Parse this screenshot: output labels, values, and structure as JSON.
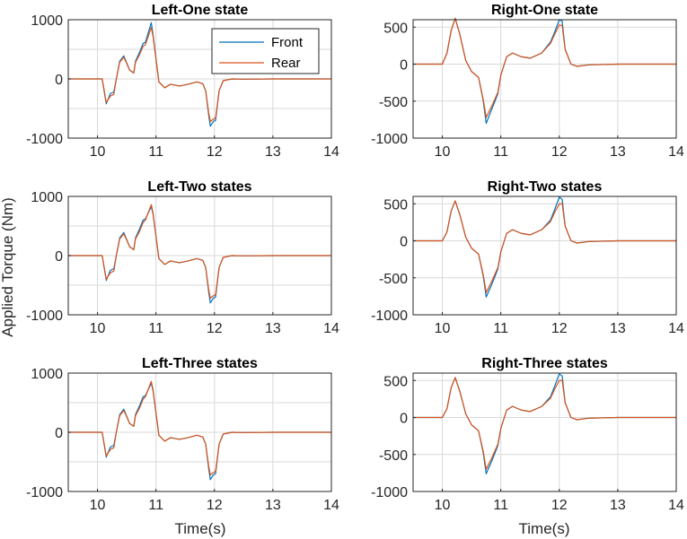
{
  "figure": {
    "ylabel": "Applied Torque (Nm)",
    "xlabel": "Time(s)",
    "colors": {
      "front": "#0072BD",
      "rear": "#D95319"
    }
  },
  "legend": {
    "items": [
      "Front",
      "Rear"
    ],
    "location": "top-right of Left-One state panel"
  },
  "chart_data": [
    {
      "type": "line",
      "title": "Left-One state",
      "xlim": [
        9.5,
        14
      ],
      "ylim": [
        -1000,
        1000
      ],
      "xticks": [
        10,
        11,
        12,
        13,
        14
      ],
      "yticks": [
        -1000,
        0,
        1000
      ],
      "grid": true,
      "legend": true,
      "series": [
        {
          "name": "Front",
          "x": [
            9.5,
            10.0,
            10.08,
            10.15,
            10.22,
            10.28,
            10.32,
            10.38,
            10.45,
            10.55,
            10.62,
            10.65,
            10.72,
            10.78,
            10.82,
            10.92,
            10.95,
            11.05,
            11.15,
            11.25,
            11.4,
            11.55,
            11.7,
            11.8,
            11.85,
            11.9,
            11.93,
            11.98,
            12.02,
            12.08,
            12.15,
            12.3,
            12.5,
            13.0,
            14.0
          ],
          "y": [
            0,
            0,
            0,
            -420,
            -250,
            -220,
            -10,
            300,
            390,
            150,
            100,
            300,
            450,
            600,
            620,
            950,
            750,
            -50,
            -150,
            -90,
            -120,
            -90,
            -50,
            -80,
            -200,
            -600,
            -800,
            -720,
            -700,
            -200,
            -30,
            0,
            -5,
            0,
            0
          ]
        },
        {
          "name": "Rear",
          "x": [
            9.5,
            10.0,
            10.08,
            10.15,
            10.22,
            10.28,
            10.32,
            10.38,
            10.45,
            10.55,
            10.62,
            10.65,
            10.72,
            10.78,
            10.82,
            10.92,
            10.95,
            11.05,
            11.15,
            11.25,
            11.4,
            11.55,
            11.7,
            11.8,
            11.85,
            11.9,
            11.93,
            11.98,
            12.02,
            12.08,
            12.15,
            12.3,
            12.5,
            13.0,
            14.0
          ],
          "y": [
            0,
            0,
            0,
            -400,
            -290,
            -260,
            -10,
            280,
            370,
            150,
            100,
            280,
            410,
            550,
            580,
            870,
            720,
            -50,
            -150,
            -90,
            -120,
            -90,
            -50,
            -80,
            -200,
            -560,
            -720,
            -680,
            -660,
            -200,
            -30,
            0,
            -5,
            0,
            0
          ]
        }
      ]
    },
    {
      "type": "line",
      "title": "Right-One state",
      "xlim": [
        9.5,
        14
      ],
      "ylim": [
        -1000,
        600
      ],
      "xticks": [
        10,
        11,
        12,
        13,
        14
      ],
      "yticks": [
        -1000,
        -500,
        0,
        500
      ],
      "grid": true,
      "legend": false,
      "series": [
        {
          "name": "Front",
          "x": [
            9.5,
            10.0,
            10.08,
            10.15,
            10.22,
            10.3,
            10.4,
            10.5,
            10.62,
            10.7,
            10.75,
            10.85,
            10.95,
            11.0,
            11.1,
            11.2,
            11.35,
            11.5,
            11.7,
            11.85,
            11.92,
            12.0,
            12.05,
            12.1,
            12.2,
            12.3,
            12.5,
            13.0,
            14.0
          ],
          "y": [
            0,
            0,
            150,
            450,
            620,
            400,
            50,
            -100,
            -180,
            -500,
            -800,
            -600,
            -400,
            -150,
            100,
            150,
            100,
            80,
            150,
            300,
            430,
            600,
            580,
            200,
            0,
            -30,
            -10,
            0,
            0
          ]
        },
        {
          "name": "Rear",
          "x": [
            9.5,
            10.0,
            10.08,
            10.15,
            10.22,
            10.3,
            10.4,
            10.5,
            10.62,
            10.7,
            10.75,
            10.85,
            10.95,
            11.0,
            11.1,
            11.2,
            11.35,
            11.5,
            11.7,
            11.85,
            11.92,
            12.0,
            12.05,
            12.1,
            12.2,
            12.3,
            12.5,
            13.0,
            14.0
          ],
          "y": [
            0,
            0,
            150,
            450,
            620,
            400,
            50,
            -100,
            -180,
            -480,
            -720,
            -560,
            -380,
            -150,
            100,
            150,
            100,
            80,
            150,
            280,
            400,
            530,
            520,
            200,
            0,
            -30,
            -10,
            0,
            0
          ]
        }
      ]
    },
    {
      "type": "line",
      "title": "Left-Two states",
      "xlim": [
        9.5,
        14
      ],
      "ylim": [
        -1000,
        1000
      ],
      "xticks": [
        10,
        11,
        12,
        13,
        14
      ],
      "yticks": [
        -1000,
        0,
        1000
      ],
      "grid": true,
      "legend": false,
      "series": [
        {
          "name": "Front",
          "x": [
            9.5,
            10.0,
            10.08,
            10.15,
            10.22,
            10.28,
            10.32,
            10.38,
            10.45,
            10.55,
            10.62,
            10.65,
            10.72,
            10.78,
            10.82,
            10.92,
            10.95,
            11.05,
            11.15,
            11.25,
            11.4,
            11.55,
            11.7,
            11.8,
            11.85,
            11.9,
            11.93,
            11.98,
            12.02,
            12.08,
            12.15,
            12.3,
            12.5,
            13.0,
            14.0
          ],
          "y": [
            0,
            0,
            0,
            -420,
            -250,
            -220,
            -10,
            300,
            390,
            150,
            100,
            300,
            450,
            600,
            620,
            830,
            700,
            -50,
            -150,
            -90,
            -120,
            -90,
            -50,
            -80,
            -200,
            -600,
            -800,
            -720,
            -700,
            -200,
            -30,
            0,
            -5,
            0,
            0
          ]
        },
        {
          "name": "Rear",
          "x": [
            9.5,
            10.0,
            10.08,
            10.15,
            10.22,
            10.28,
            10.32,
            10.38,
            10.45,
            10.55,
            10.62,
            10.65,
            10.72,
            10.78,
            10.82,
            10.92,
            10.95,
            11.05,
            11.15,
            11.25,
            11.4,
            11.55,
            11.7,
            11.8,
            11.85,
            11.9,
            11.93,
            11.98,
            12.02,
            12.08,
            12.15,
            12.3,
            12.5,
            13.0,
            14.0
          ],
          "y": [
            0,
            0,
            0,
            -400,
            -290,
            -260,
            -10,
            280,
            370,
            150,
            100,
            280,
            410,
            560,
            600,
            860,
            720,
            -50,
            -150,
            -90,
            -120,
            -90,
            -50,
            -80,
            -200,
            -560,
            -720,
            -680,
            -660,
            -200,
            -30,
            0,
            -5,
            0,
            0
          ]
        }
      ]
    },
    {
      "type": "line",
      "title": "Right-Two states",
      "xlim": [
        9.5,
        14
      ],
      "ylim": [
        -1000,
        600
      ],
      "xticks": [
        10,
        11,
        12,
        13,
        14
      ],
      "yticks": [
        -1000,
        -500,
        0,
        500
      ],
      "grid": true,
      "legend": false,
      "series": [
        {
          "name": "Front",
          "x": [
            9.5,
            10.0,
            10.08,
            10.15,
            10.22,
            10.3,
            10.4,
            10.5,
            10.62,
            10.7,
            10.75,
            10.85,
            10.95,
            11.0,
            11.1,
            11.2,
            11.35,
            11.5,
            11.7,
            11.85,
            11.92,
            12.0,
            12.05,
            12.1,
            12.2,
            12.3,
            12.5,
            13.0,
            14.0
          ],
          "y": [
            0,
            0,
            120,
            400,
            540,
            350,
            50,
            -100,
            -180,
            -480,
            -760,
            -580,
            -380,
            -150,
            100,
            150,
            100,
            80,
            150,
            280,
            420,
            590,
            560,
            200,
            0,
            -30,
            -10,
            0,
            0
          ]
        },
        {
          "name": "Rear",
          "x": [
            9.5,
            10.0,
            10.08,
            10.15,
            10.22,
            10.3,
            10.4,
            10.5,
            10.62,
            10.7,
            10.75,
            10.85,
            10.95,
            11.0,
            11.1,
            11.2,
            11.35,
            11.5,
            11.7,
            11.85,
            11.92,
            12.0,
            12.05,
            12.1,
            12.2,
            12.3,
            12.5,
            13.0,
            14.0
          ],
          "y": [
            0,
            0,
            120,
            400,
            540,
            350,
            50,
            -100,
            -180,
            -460,
            -700,
            -540,
            -360,
            -150,
            100,
            150,
            100,
            80,
            150,
            260,
            380,
            500,
            500,
            200,
            0,
            -30,
            -10,
            0,
            0
          ]
        }
      ]
    },
    {
      "type": "line",
      "title": "Left-Three states",
      "xlim": [
        9.5,
        14
      ],
      "ylim": [
        -1000,
        1000
      ],
      "xticks": [
        10,
        11,
        12,
        13,
        14
      ],
      "yticks": [
        -1000,
        0,
        1000
      ],
      "grid": true,
      "legend": false,
      "series": [
        {
          "name": "Front",
          "x": [
            9.5,
            10.0,
            10.08,
            10.15,
            10.22,
            10.28,
            10.32,
            10.38,
            10.45,
            10.55,
            10.62,
            10.65,
            10.72,
            10.78,
            10.82,
            10.92,
            10.95,
            11.05,
            11.15,
            11.25,
            11.4,
            11.55,
            11.7,
            11.8,
            11.85,
            11.9,
            11.93,
            11.98,
            12.02,
            12.08,
            12.15,
            12.3,
            12.5,
            13.0,
            14.0
          ],
          "y": [
            0,
            0,
            0,
            -420,
            -250,
            -220,
            -10,
            300,
            390,
            150,
            100,
            300,
            450,
            600,
            620,
            830,
            700,
            -50,
            -150,
            -90,
            -120,
            -90,
            -50,
            -80,
            -200,
            -600,
            -800,
            -720,
            -700,
            -200,
            -30,
            0,
            -5,
            0,
            0
          ]
        },
        {
          "name": "Rear",
          "x": [
            9.5,
            10.0,
            10.08,
            10.15,
            10.22,
            10.28,
            10.32,
            10.38,
            10.45,
            10.55,
            10.62,
            10.65,
            10.72,
            10.78,
            10.82,
            10.92,
            10.95,
            11.05,
            11.15,
            11.25,
            11.4,
            11.55,
            11.7,
            11.8,
            11.85,
            11.9,
            11.93,
            11.98,
            12.02,
            12.08,
            12.15,
            12.3,
            12.5,
            13.0,
            14.0
          ],
          "y": [
            0,
            0,
            0,
            -400,
            -290,
            -260,
            -10,
            280,
            370,
            150,
            100,
            280,
            410,
            560,
            600,
            860,
            720,
            -50,
            -150,
            -90,
            -120,
            -90,
            -50,
            -80,
            -200,
            -560,
            -720,
            -680,
            -660,
            -200,
            -30,
            0,
            -5,
            0,
            0
          ]
        }
      ]
    },
    {
      "type": "line",
      "title": "Right-Three states",
      "xlim": [
        9.5,
        14
      ],
      "ylim": [
        -1000,
        600
      ],
      "xticks": [
        10,
        11,
        12,
        13,
        14
      ],
      "yticks": [
        -1000,
        -500,
        0,
        500
      ],
      "grid": true,
      "legend": false,
      "series": [
        {
          "name": "Front",
          "x": [
            9.5,
            10.0,
            10.08,
            10.15,
            10.22,
            10.3,
            10.4,
            10.5,
            10.62,
            10.7,
            10.75,
            10.85,
            10.95,
            11.0,
            11.1,
            11.2,
            11.35,
            11.5,
            11.7,
            11.85,
            11.92,
            12.0,
            12.05,
            12.1,
            12.2,
            12.3,
            12.5,
            13.0,
            14.0
          ],
          "y": [
            0,
            0,
            120,
            400,
            540,
            350,
            50,
            -100,
            -180,
            -480,
            -760,
            -580,
            -380,
            -150,
            100,
            150,
            100,
            80,
            150,
            280,
            420,
            590,
            560,
            200,
            0,
            -30,
            -10,
            0,
            0
          ]
        },
        {
          "name": "Rear",
          "x": [
            9.5,
            10.0,
            10.08,
            10.15,
            10.22,
            10.3,
            10.4,
            10.5,
            10.62,
            10.7,
            10.75,
            10.85,
            10.95,
            11.0,
            11.1,
            11.2,
            11.35,
            11.5,
            11.7,
            11.85,
            11.92,
            12.0,
            12.05,
            12.1,
            12.2,
            12.3,
            12.5,
            13.0,
            14.0
          ],
          "y": [
            0,
            0,
            120,
            400,
            540,
            350,
            50,
            -100,
            -180,
            -460,
            -700,
            -540,
            -360,
            -150,
            100,
            150,
            100,
            80,
            150,
            260,
            380,
            500,
            500,
            200,
            0,
            -30,
            -10,
            0,
            0
          ]
        }
      ]
    }
  ]
}
